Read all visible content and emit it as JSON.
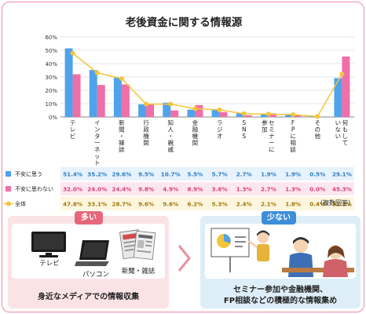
{
  "title": "老後資金に関する情報源",
  "note": "（複数回答）",
  "colors": {
    "blue": "#4fa3ea",
    "pink": "#ef6fa8",
    "line": "#f4c43a",
    "frame": "#ea8fa0"
  },
  "chart_data": {
    "type": "bar",
    "categories": [
      "テレビ",
      "インターネット",
      "新聞・雑誌",
      "行政機関",
      "知人・親戚",
      "金融機関",
      "ラジオ",
      "SNS",
      "セミナーに参加",
      "FPに相談",
      "その他",
      "何もしていない"
    ],
    "category_lines": [
      [
        "テ",
        "レ",
        "ビ"
      ],
      [
        "イ",
        "ン",
        "タ",
        "ー",
        "ネ",
        "ッ",
        "ト"
      ],
      [
        "新",
        "聞",
        "・",
        "雑",
        "誌"
      ],
      [
        "行",
        "政",
        "機",
        "関"
      ],
      [
        "知",
        "人",
        "・",
        "親",
        "戚"
      ],
      [
        "金",
        "融",
        "機",
        "関"
      ],
      [
        "ラ",
        "ジ",
        "オ"
      ],
      [
        "S",
        "N",
        "S"
      ],
      [
        "セ",
        "ミ",
        "ナ",
        "ー",
        "に"
      ],
      [
        "F",
        "P",
        "に",
        "相",
        "談"
      ],
      [
        "そ",
        "の",
        "他"
      ],
      [
        "何",
        "も",
        "し",
        "て"
      ]
    ],
    "category_lines2": [
      [],
      [],
      [],
      [],
      [],
      [],
      [],
      [],
      [
        "参",
        "加"
      ],
      [],
      [],
      [
        "い",
        "な",
        "い"
      ]
    ],
    "yticks": [
      "0%",
      "10%",
      "20%",
      "30%",
      "40%",
      "50%",
      "60%"
    ],
    "ylim": [
      0,
      60
    ],
    "series": [
      {
        "name": "不安に思う",
        "kind": "bar",
        "values": [
          51.4,
          35.2,
          29.6,
          9.5,
          10.7,
          5.5,
          5.7,
          2.7,
          1.9,
          1.9,
          0.5,
          29.1
        ],
        "labels": [
          "51.4%",
          "35.2%",
          "29.6%",
          "9.5%",
          "10.7%",
          "5.5%",
          "5.7%",
          "2.7%",
          "1.9%",
          "1.9%",
          "0.5%",
          "29.1%"
        ]
      },
      {
        "name": "不安に思わない",
        "kind": "bar",
        "values": [
          32.0,
          24.0,
          24.4,
          9.8,
          4.9,
          8.9,
          3.6,
          1.3,
          2.7,
          1.3,
          0.0,
          45.3
        ],
        "labels": [
          "32.0%",
          "24.0%",
          "24.4%",
          "9.8%",
          "4.9%",
          "8.9%",
          "3.6%",
          "1.3%",
          "2.7%",
          "1.3%",
          "0.0%",
          "45.3%"
        ]
      },
      {
        "name": "全体",
        "kind": "line",
        "values": [
          47.8,
          33.1,
          28.7,
          9.6,
          9.6,
          6.2,
          5.3,
          2.4,
          2.1,
          1.8,
          0.4,
          32.2
        ],
        "labels": [
          "47.8%",
          "33.1%",
          "28.7%",
          "9.6%",
          "9.6%",
          "6.2%",
          "5.3%",
          "2.4%",
          "2.1%",
          "1.8%",
          "0.4%",
          "32.2%"
        ]
      }
    ]
  },
  "left_panel": {
    "tag": "多い",
    "items": [
      "テレビ",
      "パソコン",
      "新聞・雑誌"
    ],
    "caption": "身近なメディアでの情報収集"
  },
  "right_panel": {
    "tag": "少ない",
    "caption_line1": "セミナー参加や金融機関、",
    "caption_line2": "FP相談などの積極的な情報集め"
  },
  "icons": [
    "tv-icon",
    "laptop-icon",
    "newspaper-icon",
    "arrow-right-icon",
    "seminar-scene-icon"
  ]
}
